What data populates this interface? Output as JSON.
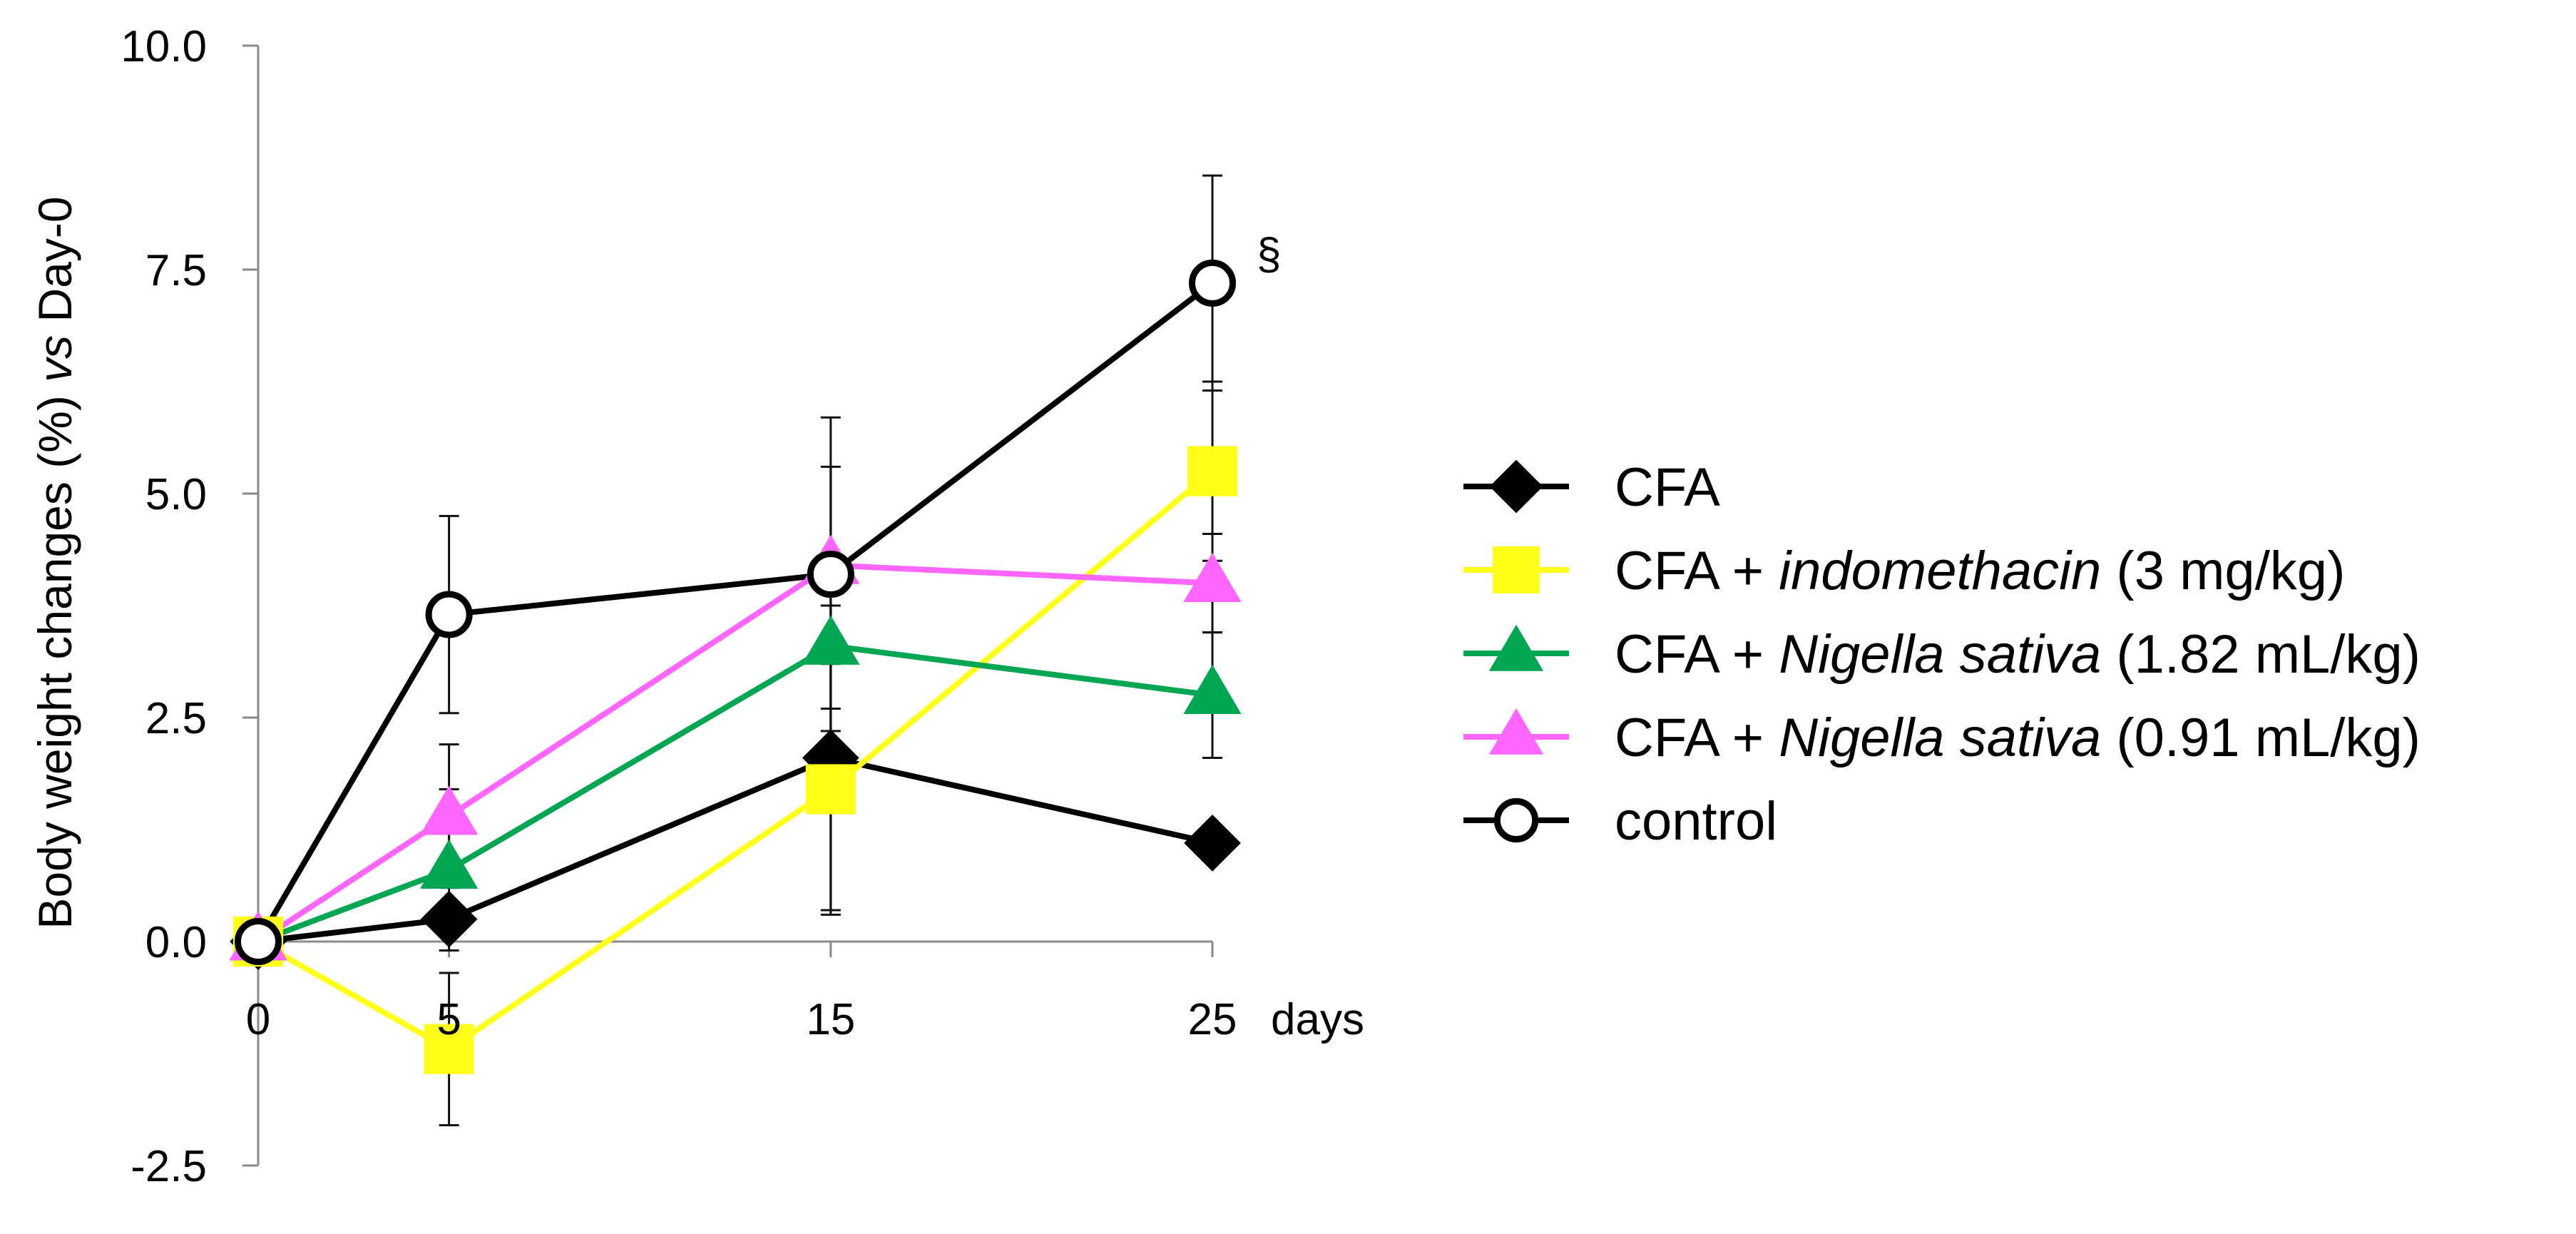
{
  "chart_data": {
    "type": "line",
    "x": [
      0,
      5,
      15,
      25
    ],
    "x_tick_labels": [
      "0",
      "5",
      "15",
      "25"
    ],
    "xlabel_suffix": "days",
    "ylabel": "Body weight changes (%) vs Day-0",
    "ylabel_parts": {
      "before": "Body weight changes (%) ",
      "italic": "vs",
      "after": " Day-0"
    },
    "ylim": [
      -2.5,
      10.0
    ],
    "y_ticks": [
      -2.5,
      0.0,
      2.5,
      5.0,
      7.5,
      10.0
    ],
    "y_tick_labels": [
      "-2.5",
      "0.0",
      "2.5",
      "5.0",
      "7.5",
      "10.0"
    ],
    "annotation": {
      "text": "§",
      "series": "control",
      "x": 25
    },
    "series": [
      {
        "name": "CFA",
        "label_parts": [
          {
            "text": "CFA",
            "italic": false
          }
        ],
        "color": "#000000",
        "marker": "diamond",
        "fill": "#000000",
        "values": [
          0.0,
          0.25,
          2.05,
          1.1
        ],
        "err": [
          0,
          0,
          1.7,
          0
        ]
      },
      {
        "name": "CFA + indomethacin (3 mg/kg)",
        "label_parts": [
          {
            "text": "CFA + ",
            "italic": false
          },
          {
            "text": "indomethacin",
            "italic": true
          },
          {
            "text": " (3 mg/kg)",
            "italic": false
          }
        ],
        "color": "#ffff1a",
        "marker": "square",
        "fill": "#ffff1a",
        "values": [
          0.0,
          -1.2,
          1.7,
          5.25
        ],
        "err": [
          0,
          0.85,
          1.4,
          1.0
        ]
      },
      {
        "name": "CFA + Nigella sativa (1.82 mL/kg)",
        "label_parts": [
          {
            "text": "CFA + ",
            "italic": false
          },
          {
            "text": "Nigella sativa",
            "italic": true
          },
          {
            "text": " (1.82 mL/kg)",
            "italic": false
          }
        ],
        "color": "#00a651",
        "marker": "triangle",
        "fill": "#00a651",
        "values": [
          0.0,
          0.8,
          3.3,
          2.75
        ],
        "err": [
          0,
          0.9,
          0.7,
          0.7
        ]
      },
      {
        "name": "CFA + Nigella sativa (0.91 mL/kg)",
        "label_parts": [
          {
            "text": "CFA + ",
            "italic": false
          },
          {
            "text": "Nigella sativa",
            "italic": true
          },
          {
            "text": " (0.91 mL/kg)",
            "italic": false
          }
        ],
        "color": "#ff66ff",
        "marker": "triangle",
        "fill": "#ff66ff",
        "values": [
          0.0,
          1.4,
          4.2,
          4.0
        ],
        "err": [
          0,
          0.8,
          1.1,
          0.55
        ]
      },
      {
        "name": "control",
        "label_parts": [
          {
            "text": "control",
            "italic": false
          }
        ],
        "color": "#000000",
        "marker": "circle",
        "fill": "#ffffff",
        "values": [
          0.0,
          3.65,
          4.1,
          7.35
        ],
        "err": [
          0,
          1.1,
          1.75,
          1.2
        ]
      }
    ],
    "legend_position": "right"
  }
}
